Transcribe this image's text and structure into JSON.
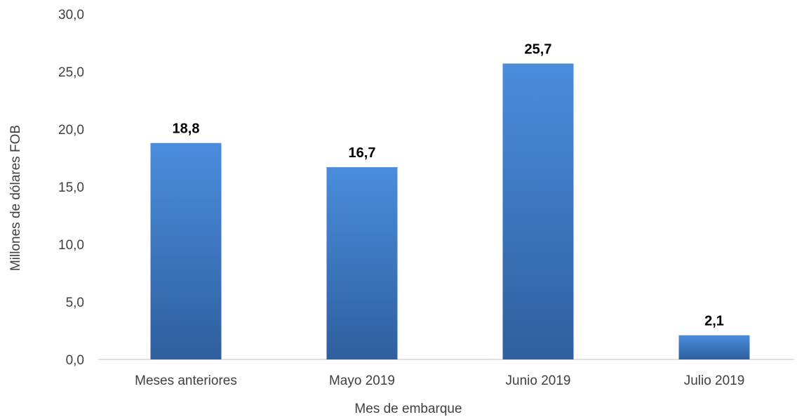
{
  "chart_data": {
    "type": "bar",
    "categories": [
      "Meses anteriores",
      "Mayo 2019",
      "Junio 2019",
      "Julio 2019"
    ],
    "values": [
      18.8,
      16.7,
      25.7,
      2.1
    ],
    "value_labels": [
      "18,8",
      "16,7",
      "25,7",
      "2,1"
    ],
    "xlabel": "Mes de embarque",
    "ylabel": "Millones de dólares FOB",
    "ylim": [
      0,
      30
    ],
    "yticks": [
      0,
      5,
      10,
      15,
      20,
      25,
      30
    ],
    "ytick_labels": [
      "0,0",
      "5,0",
      "10,0",
      "15,0",
      "20,0",
      "25,0",
      "30,0"
    ],
    "grid": false,
    "legend": "none",
    "colors": {
      "bar_top": "#4a8ddc",
      "bar_bottom": "#2f5f9e",
      "axis": "#d9d9d9"
    }
  }
}
